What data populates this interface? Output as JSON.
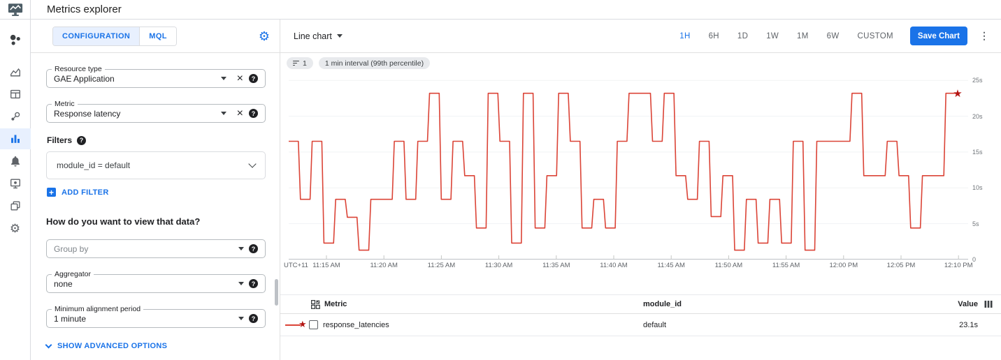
{
  "header": {
    "title": "Metrics explorer"
  },
  "sidebar": {
    "icons": [
      "workspaces-icon",
      "metrics-overview-icon",
      "dashboards-icon",
      "services-icon",
      "metrics-explorer-icon",
      "alerting-bell-icon",
      "uptime-monitor-icon",
      "groups-icon",
      "settings-gear-icon"
    ],
    "active_item": "metrics-explorer"
  },
  "config": {
    "tabs": {
      "configuration": "CONFIGURATION",
      "mql": "MQL"
    },
    "resource_type": {
      "label": "Resource type",
      "value": "GAE Application"
    },
    "metric": {
      "label": "Metric",
      "value": "Response latency"
    },
    "filters": {
      "label": "Filters",
      "chip": "module_id = default",
      "add_filter": "ADD FILTER"
    },
    "view_question": "How do you want to view that data?",
    "group_by": {
      "placeholder": "Group by"
    },
    "aggregator": {
      "label": "Aggregator",
      "value": "none"
    },
    "min_alignment": {
      "label": "Minimum alignment period",
      "value": "1 minute"
    },
    "show_advanced": "SHOW ADVANCED OPTIONS"
  },
  "chart": {
    "type_selector": "Line chart",
    "ranges": [
      "1H",
      "6H",
      "1D",
      "1W",
      "1M",
      "6W",
      "CUSTOM"
    ],
    "active_range": "1H",
    "save_button": "Save Chart",
    "filter_chip_count": "1",
    "interval_chip": "1 min interval (99th percentile)"
  },
  "chart_data": {
    "type": "line",
    "style": "step-after",
    "title": "",
    "x_axis_prefix": "UTC+11",
    "x_start": "11:11 AM",
    "x_interval_minutes": 1,
    "x_tick_labels": [
      "11:15 AM",
      "11:20 AM",
      "11:25 AM",
      "11:30 AM",
      "11:35 AM",
      "11:40 AM",
      "11:45 AM",
      "11:50 AM",
      "11:55 AM",
      "12:00 PM",
      "12:05 PM",
      "12:10 PM"
    ],
    "y_tick_labels": [
      "25s",
      "20s",
      "15s",
      "10s",
      "5s",
      "0"
    ],
    "y_gridline_values": [
      5,
      10,
      15,
      20,
      25
    ],
    "ylim": [
      0,
      25.8
    ],
    "unit": "s",
    "grid": true,
    "end_marker": "star",
    "series": [
      {
        "name": "response_latencies",
        "color": "#db4437",
        "values": [
          16.5,
          8.4,
          16.5,
          2.3,
          8.4,
          5.9,
          1.3,
          8.4,
          8.4,
          16.5,
          8.4,
          16.5,
          23.2,
          8.4,
          16.5,
          11.7,
          4.4,
          23.2,
          16.5,
          2.3,
          23.2,
          4.4,
          11.7,
          23.2,
          16.5,
          4.4,
          8.4,
          4.4,
          16.5,
          23.2,
          23.2,
          16.5,
          23.2,
          11.7,
          8.4,
          16.5,
          6.0,
          11.7,
          1.3,
          8.4,
          2.3,
          8.4,
          2.3,
          16.5,
          1.3,
          16.5,
          16.5,
          16.5,
          23.2,
          11.7,
          11.7,
          16.5,
          11.7,
          4.4,
          11.7,
          11.7,
          23.2,
          23.1
        ]
      }
    ]
  },
  "table": {
    "columns": [
      "Metric",
      "module_id",
      "Value"
    ],
    "rows": [
      {
        "metric": "response_latencies",
        "module_id": "default",
        "value": "23.1s"
      }
    ]
  },
  "icons": {
    "clear": "×",
    "help": "?",
    "gear": "⚙",
    "kebab": "⋮",
    "add": "+",
    "star": "★"
  },
  "colors": {
    "accent": "#1a73e8",
    "accent_bg": "#e8f0fe",
    "line": "#db4437",
    "star": "#b31412",
    "chip_bg": "#e8eaed",
    "border": "#e0e0e0",
    "text": "#202124",
    "text_secondary": "#5f6368"
  }
}
